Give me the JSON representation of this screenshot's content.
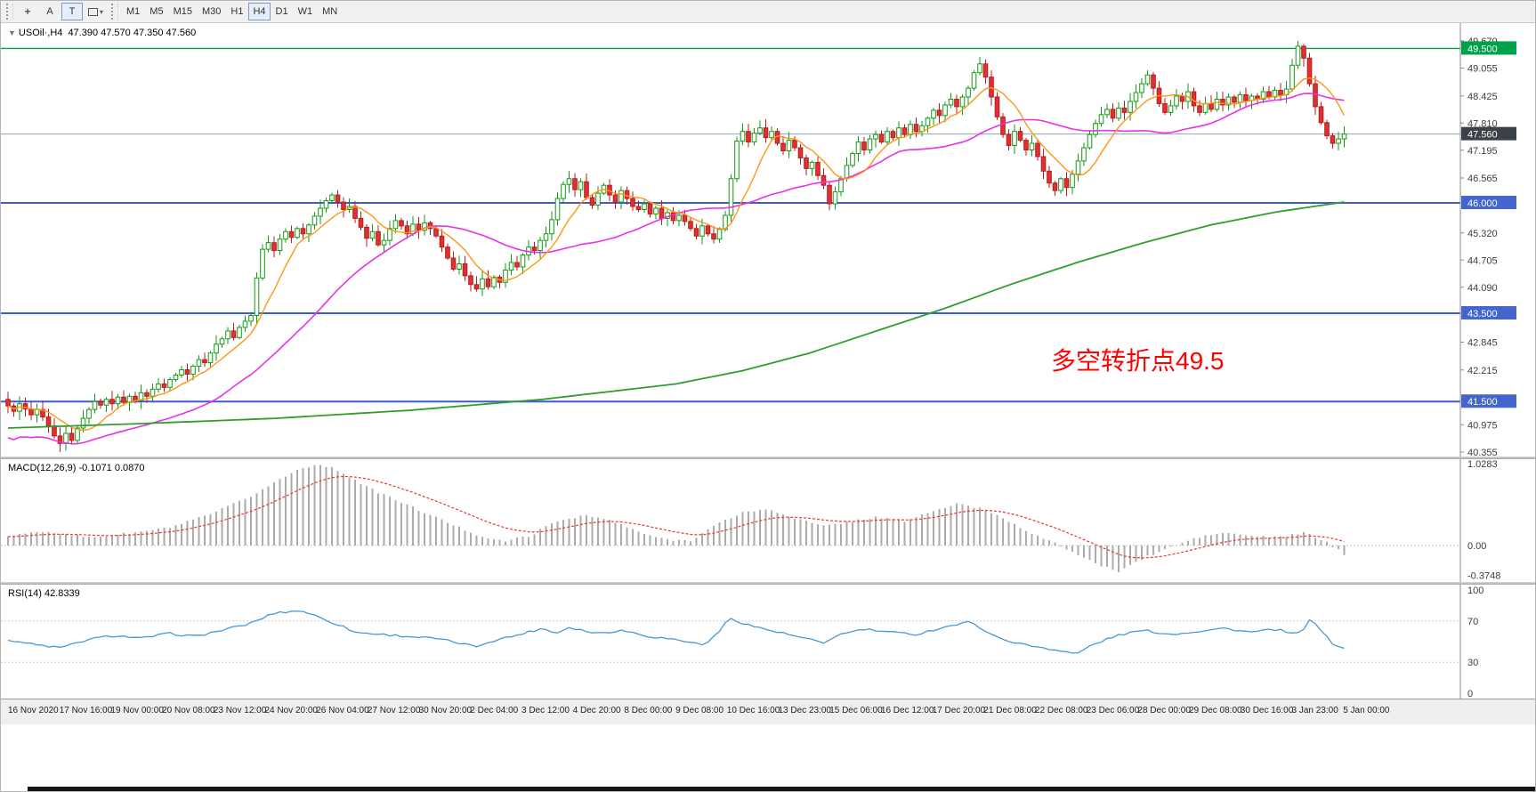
{
  "toolbar": {
    "tools": [
      {
        "name": "crosshair",
        "glyph": "+"
      },
      {
        "name": "label-a",
        "glyph": "A"
      },
      {
        "name": "text",
        "glyph": "T",
        "active": true
      },
      {
        "name": "shapes",
        "glyph": "shape",
        "caret": "▾"
      }
    ],
    "timeframes": [
      "M1",
      "M5",
      "M15",
      "M30",
      "H1",
      "H4",
      "D1",
      "W1",
      "MN"
    ],
    "active_timeframe": "H4"
  },
  "chart": {
    "collapse_arrow": "▼",
    "title": "USOil·,H4",
    "ohlc": "47.390 47.570 47.350 47.560",
    "annotation": "多空转折点49.5",
    "annotation_color": "#ff0000",
    "price_axis_plain": [
      {
        "label": "49.670",
        "price": 49.67
      },
      {
        "label": "49.055",
        "price": 49.055
      },
      {
        "label": "48.425",
        "price": 48.425
      },
      {
        "label": "47.810",
        "price": 47.81
      },
      {
        "label": "47.195",
        "price": 47.195
      },
      {
        "label": "46.565",
        "price": 46.565
      },
      {
        "label": "45.320",
        "price": 45.32
      },
      {
        "label": "44.705",
        "price": 44.705
      },
      {
        "label": "44.090",
        "price": 44.09
      },
      {
        "label": "42.845",
        "price": 42.845
      },
      {
        "label": "42.215",
        "price": 42.215
      },
      {
        "label": "40.975",
        "price": 40.975
      },
      {
        "label": "40.355",
        "price": 40.355
      }
    ],
    "levels": [
      {
        "label": "49.500",
        "price": 49.5,
        "color": "#00a14b",
        "width": 1.4,
        "badge": "#00a14b"
      },
      {
        "label": "47.560",
        "price": 47.56,
        "color": "#8fa3bd",
        "width": 1,
        "badge": "#3b4148"
      },
      {
        "label": "46.000",
        "price": 46.0,
        "color": "#3f5cc8",
        "width": 2,
        "badge": "#4466cc"
      },
      {
        "label": "43.500",
        "price": 43.5,
        "color": "#3f5cc8",
        "width": 2,
        "badge": "#4466cc"
      },
      {
        "label": "41.500",
        "price": 41.5,
        "color": "#3f5cc8",
        "width": 2,
        "badge": "#4466cc"
      }
    ],
    "time_axis": [
      "16 Nov 2020",
      "17 Nov 16:00",
      "19 Nov 00:00",
      "20 Nov 08:00",
      "23 Nov 12:00",
      "24 Nov 20:00",
      "26 Nov 04:00",
      "27 Nov 12:00",
      "30 Nov 20:00",
      "2 Dec 04:00",
      "3 Dec 12:00",
      "4 Dec 20:00",
      "8 Dec 00:00",
      "9 Dec 08:00",
      "10 Dec 16:00",
      "13 Dec 23:00",
      "15 Dec 06:00",
      "16 Dec 12:00",
      "17 Dec 20:00",
      "21 Dec 08:00",
      "22 Dec 08:00",
      "23 Dec 06:00",
      "28 Dec 00:00",
      "29 Dec 08:00",
      "30 Dec 16:00",
      "3 Jan 23:00",
      "5 Jan 00:00"
    ]
  },
  "macd": {
    "label": "MACD(12,26,9) -0.1071 0.0870",
    "axis": [
      {
        "label": "1.0283",
        "value": 1.0283
      },
      {
        "label": "0.00",
        "value": 0
      },
      {
        "label": "-0.3748",
        "value": -0.3748
      }
    ]
  },
  "rsi": {
    "label": "RSI(14) 42.8339",
    "axis": [
      {
        "label": "100",
        "value": 100
      },
      {
        "label": "70",
        "value": 70
      },
      {
        "label": "30",
        "value": 30
      },
      {
        "label": "0",
        "value": 0
      }
    ]
  },
  "chart_data": [
    {
      "type": "candlestick",
      "symbol": "USOil",
      "period": "H4",
      "title": "USOil·,H4",
      "current_bar": {
        "open": 47.39,
        "high": 47.57,
        "low": 47.35,
        "close": 47.56
      },
      "ylim": [
        40.355,
        49.67
      ],
      "up_color": "#119a11",
      "up_fill": "#ffffff",
      "down_color": "#b71c1c",
      "down_fill": "#e03030",
      "closes": [
        41.4,
        41.28,
        41.45,
        41.33,
        41.2,
        41.32,
        41.15,
        40.95,
        40.72,
        40.55,
        40.78,
        40.62,
        40.9,
        41.12,
        41.32,
        41.5,
        41.42,
        41.55,
        41.45,
        41.6,
        41.48,
        41.62,
        41.52,
        41.7,
        41.62,
        41.78,
        41.9,
        41.82,
        42.0,
        42.1,
        42.22,
        42.12,
        42.3,
        42.45,
        42.38,
        42.6,
        42.8,
        42.92,
        43.1,
        42.95,
        43.18,
        43.32,
        43.45,
        44.3,
        44.95,
        45.1,
        44.92,
        45.18,
        45.35,
        45.22,
        45.42,
        45.3,
        45.5,
        45.7,
        45.88,
        46.05,
        46.18,
        46.02,
        45.85,
        45.92,
        45.65,
        45.45,
        45.2,
        45.35,
        45.05,
        45.15,
        45.42,
        45.6,
        45.48,
        45.3,
        45.52,
        45.38,
        45.55,
        45.42,
        45.25,
        45.0,
        44.75,
        44.5,
        44.62,
        44.35,
        44.15,
        44.05,
        44.28,
        44.1,
        44.32,
        44.2,
        44.48,
        44.65,
        44.55,
        44.82,
        45.0,
        44.92,
        45.15,
        45.3,
        45.62,
        46.1,
        46.42,
        46.55,
        46.3,
        46.48,
        46.12,
        45.95,
        46.22,
        46.4,
        46.18,
        46.02,
        46.28,
        46.1,
        45.92,
        45.85,
        45.98,
        45.75,
        45.88,
        45.65,
        45.78,
        45.6,
        45.72,
        45.58,
        45.42,
        45.25,
        45.48,
        45.3,
        45.18,
        45.4,
        45.72,
        46.55,
        47.4,
        47.62,
        47.38,
        47.58,
        47.7,
        47.48,
        47.62,
        47.35,
        47.18,
        47.42,
        47.25,
        47.02,
        46.78,
        46.92,
        46.62,
        46.4,
        45.98,
        46.25,
        46.55,
        46.85,
        47.12,
        47.38,
        47.2,
        47.45,
        47.55,
        47.38,
        47.62,
        47.48,
        47.7,
        47.55,
        47.78,
        47.62,
        47.75,
        47.92,
        48.1,
        47.98,
        48.22,
        48.35,
        48.18,
        48.4,
        48.6,
        48.95,
        49.15,
        48.85,
        48.4,
        47.95,
        47.55,
        47.3,
        47.62,
        47.42,
        47.2,
        47.35,
        47.05,
        46.72,
        46.45,
        46.28,
        46.55,
        46.35,
        46.65,
        46.95,
        47.25,
        47.55,
        47.8,
        48.0,
        48.12,
        47.92,
        48.15,
        48.05,
        48.3,
        48.5,
        48.7,
        48.9,
        48.6,
        48.25,
        48.05,
        48.2,
        48.42,
        48.3,
        48.52,
        48.2,
        48.05,
        48.25,
        48.12,
        48.35,
        48.22,
        48.4,
        48.28,
        48.45,
        48.32,
        48.42,
        48.35,
        48.52,
        48.4,
        48.55,
        48.45,
        48.58,
        49.12,
        49.55,
        49.28,
        48.7,
        48.18,
        47.82,
        47.52,
        47.35,
        47.45,
        47.56
      ],
      "extremes": {
        "low": {
          "index": 9,
          "price": 40.36
        },
        "high": {
          "index": 223,
          "price": 49.67
        }
      },
      "ma_fast": {
        "color": "#ff9518",
        "period": 8
      },
      "ma_mid": {
        "color": "#e832e8",
        "period": 30
      },
      "ma_slow": {
        "color": "#2f9e2f",
        "anchors": [
          [
            0,
            40.9
          ],
          [
            0.1,
            41.0
          ],
          [
            0.2,
            41.12
          ],
          [
            0.3,
            41.3
          ],
          [
            0.4,
            41.55
          ],
          [
            0.5,
            41.9
          ],
          [
            0.55,
            42.2
          ],
          [
            0.6,
            42.6
          ],
          [
            0.65,
            43.1
          ],
          [
            0.7,
            43.6
          ],
          [
            0.75,
            44.15
          ],
          [
            0.8,
            44.65
          ],
          [
            0.85,
            45.1
          ],
          [
            0.9,
            45.5
          ],
          [
            0.95,
            45.8
          ],
          [
            1,
            46.02
          ]
        ]
      }
    },
    {
      "type": "bar",
      "title": "MACD(12,26,9)",
      "last_macd": -0.1071,
      "last_signal": 0.087,
      "ylim": [
        -0.3748,
        1.0283
      ],
      "bar_color": "#ababab",
      "signal_color": "#e53935",
      "macd_points": [
        [
          0,
          0.12
        ],
        [
          0.03,
          0.18
        ],
        [
          0.06,
          0.1
        ],
        [
          0.09,
          0.15
        ],
        [
          0.12,
          0.22
        ],
        [
          0.15,
          0.38
        ],
        [
          0.18,
          0.6
        ],
        [
          0.2,
          0.8
        ],
        [
          0.22,
          0.98
        ],
        [
          0.235,
          1.02
        ],
        [
          0.25,
          0.92
        ],
        [
          0.27,
          0.72
        ],
        [
          0.3,
          0.5
        ],
        [
          0.33,
          0.28
        ],
        [
          0.35,
          0.14
        ],
        [
          0.37,
          0.05
        ],
        [
          0.39,
          0.12
        ],
        [
          0.41,
          0.3
        ],
        [
          0.43,
          0.38
        ],
        [
          0.45,
          0.32
        ],
        [
          0.47,
          0.18
        ],
        [
          0.49,
          0.08
        ],
        [
          0.51,
          0.06
        ],
        [
          0.53,
          0.26
        ],
        [
          0.55,
          0.42
        ],
        [
          0.57,
          0.45
        ],
        [
          0.59,
          0.34
        ],
        [
          0.61,
          0.24
        ],
        [
          0.63,
          0.3
        ],
        [
          0.65,
          0.36
        ],
        [
          0.67,
          0.3
        ],
        [
          0.69,
          0.42
        ],
        [
          0.71,
          0.52
        ],
        [
          0.73,
          0.46
        ],
        [
          0.75,
          0.3
        ],
        [
          0.77,
          0.12
        ],
        [
          0.79,
          -0.02
        ],
        [
          0.81,
          -0.2
        ],
        [
          0.83,
          -0.33
        ],
        [
          0.85,
          -0.16
        ],
        [
          0.87,
          -0.02
        ],
        [
          0.89,
          0.1
        ],
        [
          0.91,
          0.16
        ],
        [
          0.93,
          0.12
        ],
        [
          0.95,
          0.1
        ],
        [
          0.97,
          0.16
        ],
        [
          0.985,
          0.06
        ],
        [
          1,
          -0.11
        ]
      ]
    },
    {
      "type": "line",
      "title": "RSI(14)",
      "last": 42.8339,
      "ylim": [
        0,
        100
      ],
      "guide_levels": [
        70,
        30
      ],
      "line_color": "#4a96d8",
      "points": [
        [
          0,
          52
        ],
        [
          0.02,
          47
        ],
        [
          0.04,
          44
        ],
        [
          0.06,
          52
        ],
        [
          0.08,
          56
        ],
        [
          0.1,
          53
        ],
        [
          0.12,
          58
        ],
        [
          0.14,
          55
        ],
        [
          0.16,
          61
        ],
        [
          0.18,
          67
        ],
        [
          0.2,
          78
        ],
        [
          0.22,
          80
        ],
        [
          0.23,
          75
        ],
        [
          0.24,
          70
        ],
        [
          0.25,
          65
        ],
        [
          0.26,
          59
        ],
        [
          0.28,
          57
        ],
        [
          0.3,
          55
        ],
        [
          0.32,
          53
        ],
        [
          0.34,
          48
        ],
        [
          0.35,
          45
        ],
        [
          0.36,
          50
        ],
        [
          0.38,
          56
        ],
        [
          0.4,
          63
        ],
        [
          0.41,
          58
        ],
        [
          0.42,
          64
        ],
        [
          0.44,
          58
        ],
        [
          0.46,
          61
        ],
        [
          0.48,
          55
        ],
        [
          0.5,
          52
        ],
        [
          0.52,
          47
        ],
        [
          0.53,
          56
        ],
        [
          0.54,
          73
        ],
        [
          0.55,
          68
        ],
        [
          0.56,
          64
        ],
        [
          0.58,
          58
        ],
        [
          0.6,
          52
        ],
        [
          0.61,
          48
        ],
        [
          0.62,
          56
        ],
        [
          0.64,
          62
        ],
        [
          0.66,
          59
        ],
        [
          0.68,
          57
        ],
        [
          0.7,
          64
        ],
        [
          0.72,
          69
        ],
        [
          0.73,
          62
        ],
        [
          0.74,
          54
        ],
        [
          0.76,
          47
        ],
        [
          0.78,
          43
        ],
        [
          0.8,
          38
        ],
        [
          0.81,
          46
        ],
        [
          0.83,
          56
        ],
        [
          0.85,
          61
        ],
        [
          0.87,
          57
        ],
        [
          0.89,
          60
        ],
        [
          0.91,
          63
        ],
        [
          0.93,
          59
        ],
        [
          0.95,
          62
        ],
        [
          0.96,
          57
        ],
        [
          0.97,
          61
        ],
        [
          0.975,
          73
        ],
        [
          0.98,
          66
        ],
        [
          0.99,
          49
        ],
        [
          1,
          43
        ]
      ]
    }
  ]
}
